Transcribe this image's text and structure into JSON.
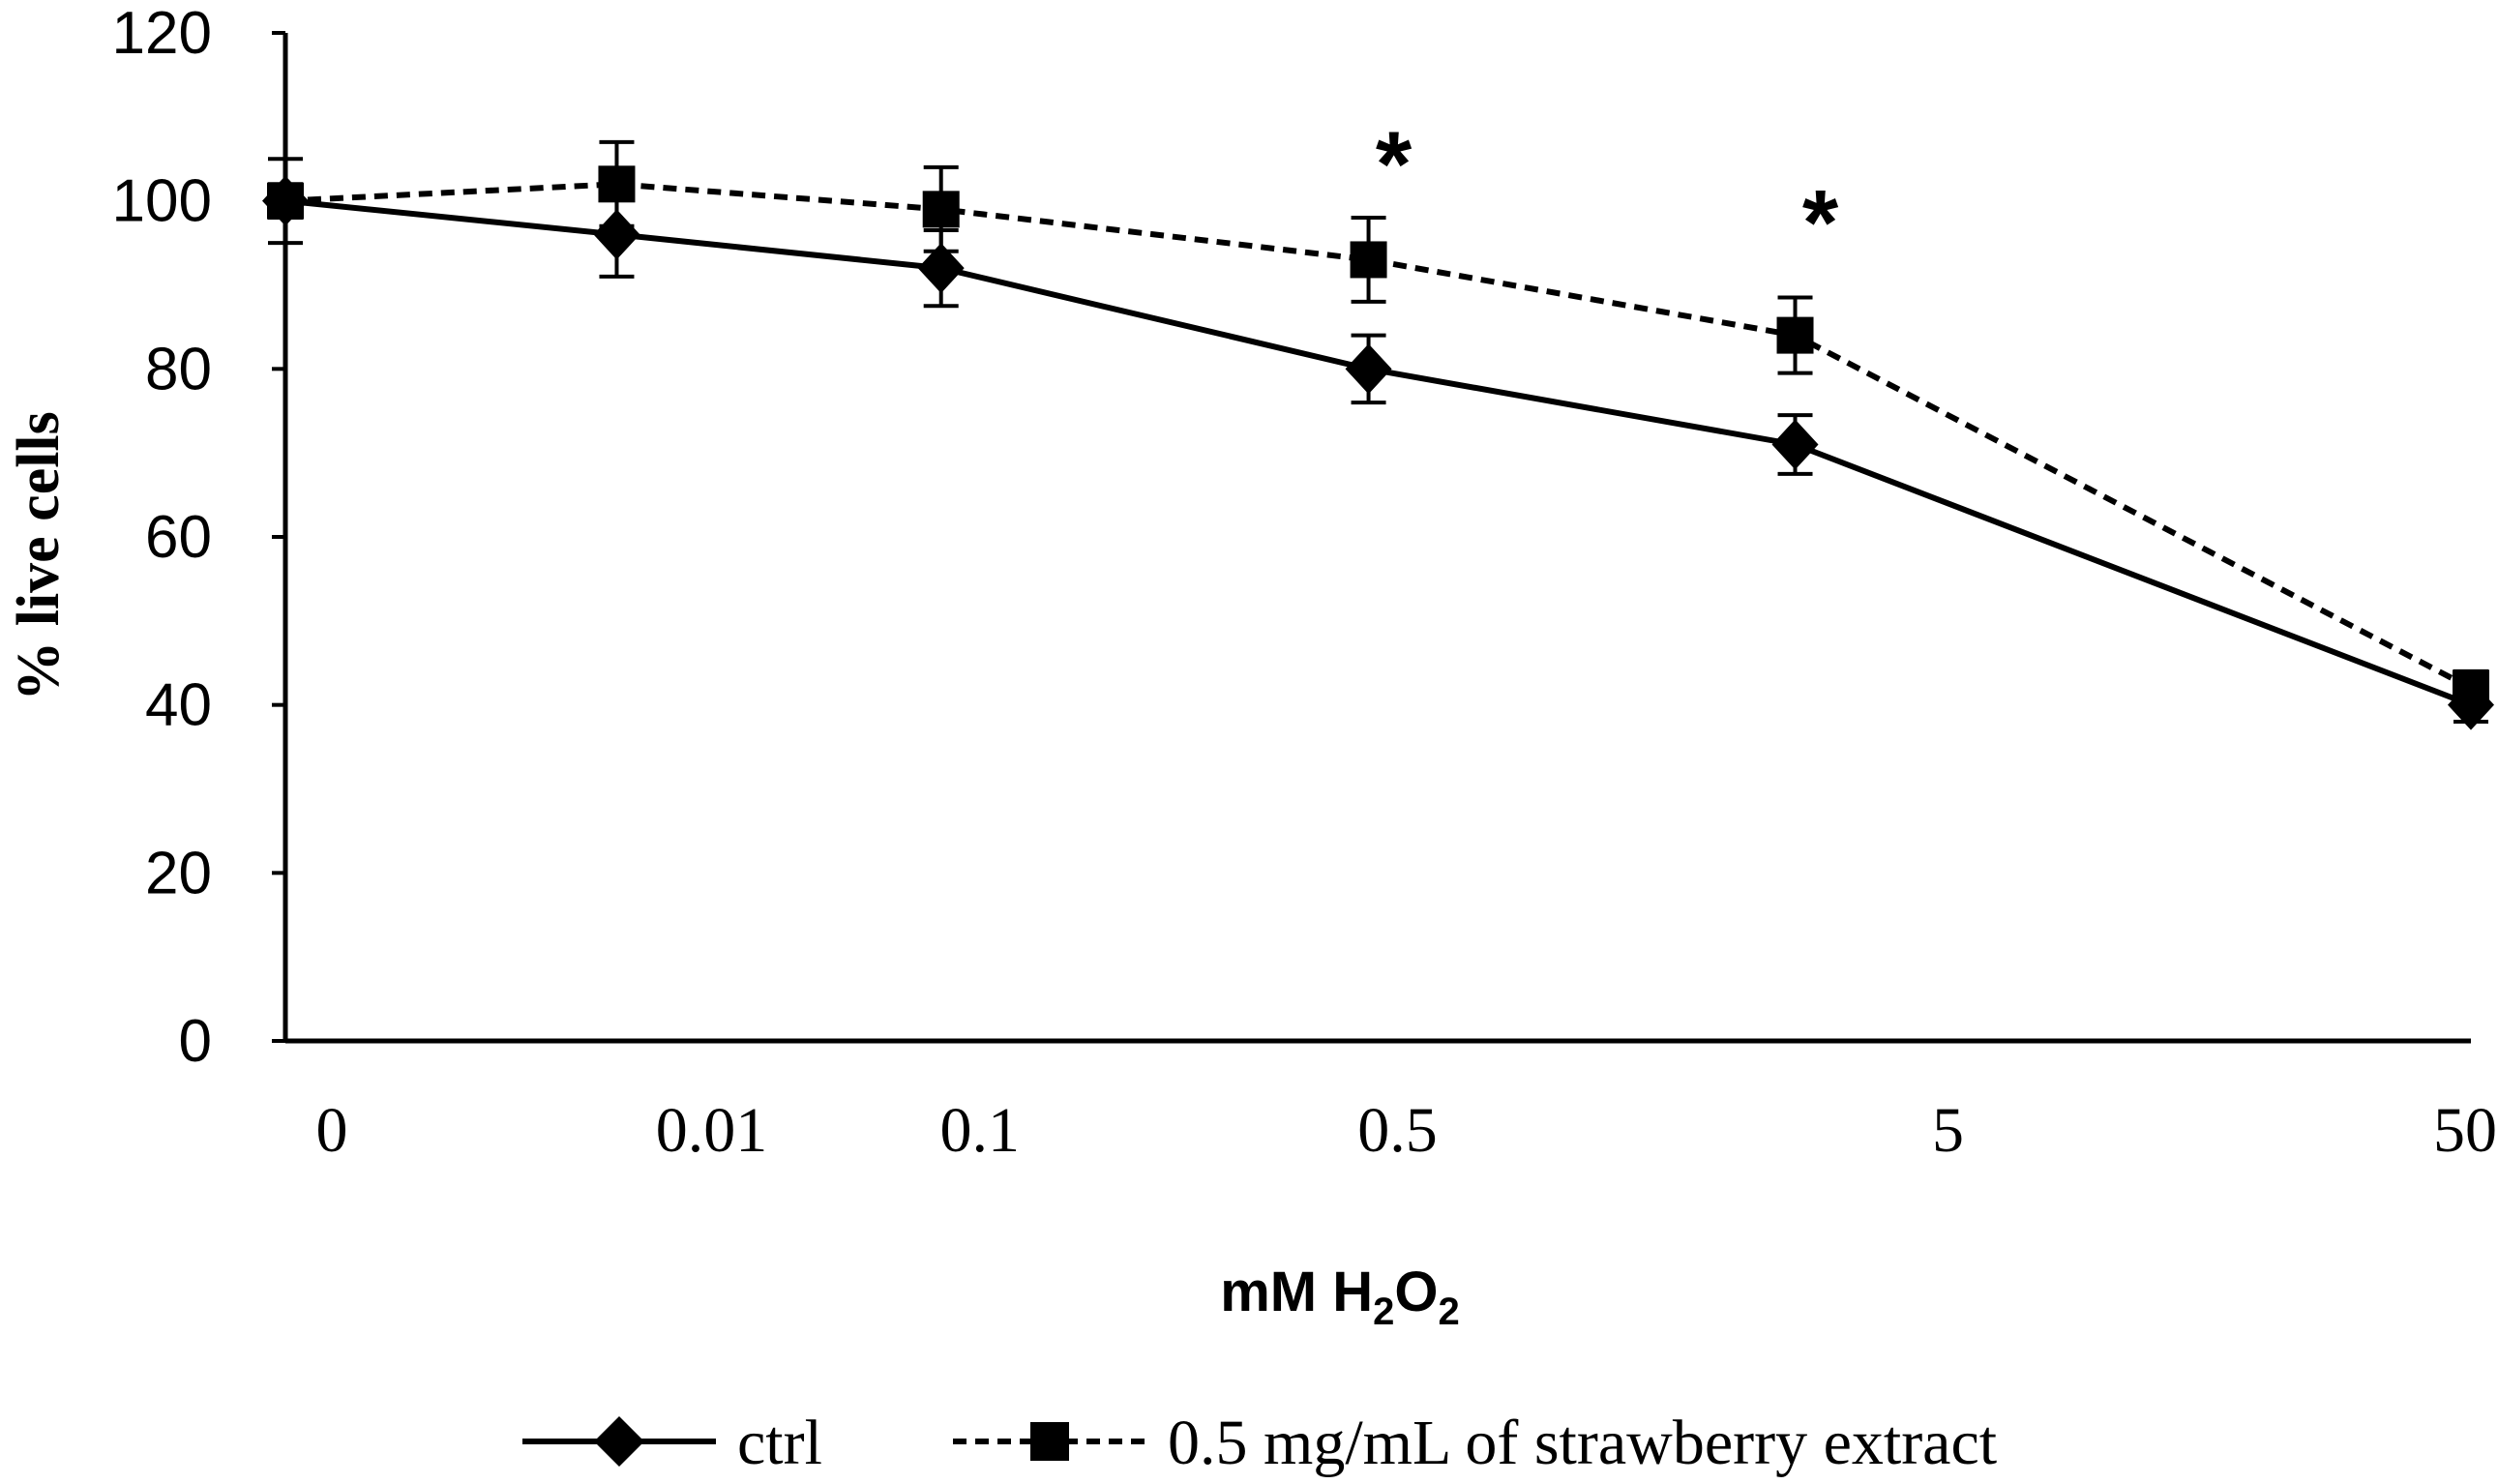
{
  "chart_data": {
    "type": "line",
    "title": "",
    "categories": [
      "0",
      "0.01",
      "0.1",
      "0.5",
      "5",
      "50"
    ],
    "xlabel": "mM H",
    "xlabel_sub1": "2",
    "xlabel_mid": "O",
    "xlabel_sub2": "2",
    "ylabel": "% live cells",
    "ylim": [
      0,
      120
    ],
    "yticks": [
      0,
      20,
      40,
      60,
      80,
      100,
      120
    ],
    "ytick_labels": [
      "0",
      "20",
      "40",
      "60",
      "80",
      "100",
      "120"
    ],
    "grid": false,
    "legend_position": "bottom",
    "series": [
      {
        "name": "ctrl",
        "marker": "diamond",
        "line_style": "solid",
        "values": [
          100,
          96,
          92,
          80,
          71,
          40
        ],
        "errors": [
          5,
          5,
          4.5,
          4,
          3.5,
          2
        ]
      },
      {
        "name": "0.5 mg/mL of strawberry extract",
        "marker": "square",
        "line_style": "dashed",
        "values": [
          100,
          102,
          99,
          93,
          84,
          42
        ],
        "errors": [
          2,
          5,
          5,
          5,
          4.5,
          2
        ]
      }
    ],
    "annotations": [
      {
        "text": "*",
        "category": "0.5",
        "y": 105
      },
      {
        "text": "*",
        "category": "5",
        "y": 98
      }
    ]
  }
}
